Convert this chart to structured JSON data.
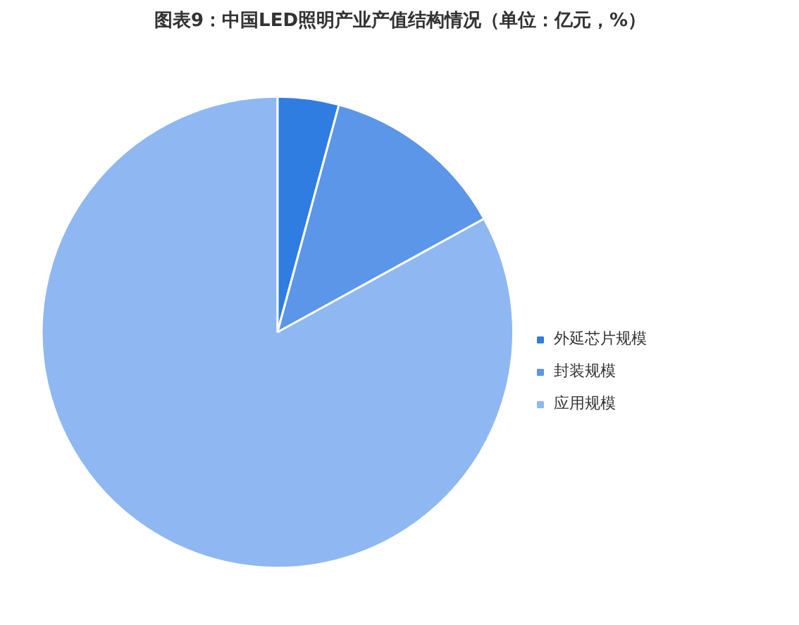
{
  "chart_data": {
    "type": "pie",
    "title": "图表9：中国LED照明产业产值结构情况（单位：亿元，%）",
    "categories": [
      "外延芯片规模",
      "封装规模",
      "应用规模"
    ],
    "values": [
      4.2,
      12.8,
      83.0
    ],
    "colors": [
      "#2f7de1",
      "#5b96e8",
      "#8fb8f2"
    ],
    "legend": "right"
  }
}
